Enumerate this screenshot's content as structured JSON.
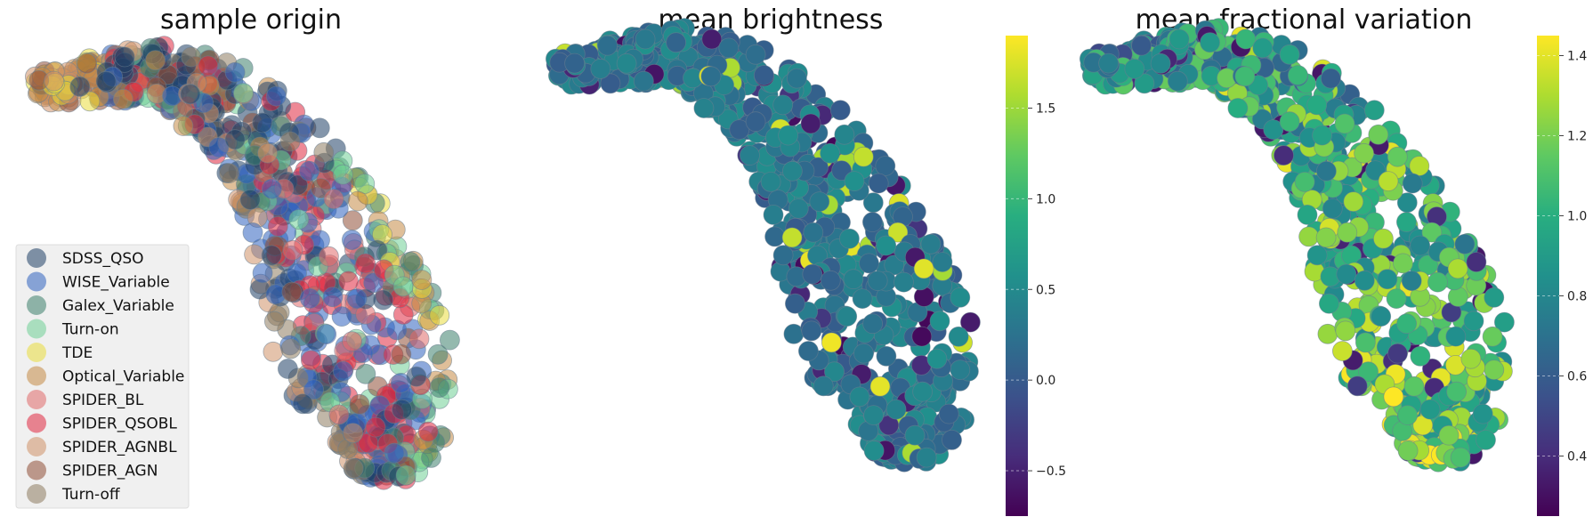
{
  "chart_data": [
    {
      "type": "scatter",
      "title": "sample origin",
      "xlabel": "",
      "ylabel": "",
      "grid": false,
      "legend": {
        "placement": "lower-left",
        "entries": [
          {
            "name": "SDSS_QSO",
            "color": "#1f3f66"
          },
          {
            "name": "WISE_Variable",
            "color": "#2f63bf"
          },
          {
            "name": "Galex_Variable",
            "color": "#3c7f6c"
          },
          {
            "name": "Turn-on",
            "color": "#6fcf95"
          },
          {
            "name": "TDE",
            "color": "#eadc3c"
          },
          {
            "name": "Optical_Variable",
            "color": "#c48a46"
          },
          {
            "name": "SPIDER_BL",
            "color": "#e06a6a"
          },
          {
            "name": "SPIDER_QSOBL",
            "color": "#e0283f"
          },
          {
            "name": "SPIDER_AGNBL",
            "color": "#cf9268"
          },
          {
            "name": "SPIDER_AGN",
            "color": "#8f4e37"
          },
          {
            "name": "Turn-off",
            "color": "#8e7b60"
          }
        ]
      }
    },
    {
      "type": "scatter",
      "title": "mean brightness",
      "colormap": "viridis",
      "colorbar": {
        "min": -0.75,
        "max": 1.9,
        "ticks": [
          -0.5,
          0.0,
          0.5,
          1.0,
          1.5
        ],
        "tick_labels": [
          "−0.5",
          "0.0",
          "0.5",
          "1.0",
          "1.5"
        ]
      },
      "value_distribution": {
        "typical_range": [
          0.0,
          0.6
        ],
        "outliers": [
          -0.7,
          1.85
        ]
      }
    },
    {
      "type": "scatter",
      "title": "mean fractional variation",
      "colormap": "viridis",
      "colorbar": {
        "min": 0.25,
        "max": 1.45,
        "ticks": [
          0.4,
          0.6,
          0.8,
          1.0,
          1.2,
          1.4
        ],
        "tick_labels": [
          "0.4",
          "0.6",
          "0.8",
          "1.0",
          "1.2",
          "1.4"
        ]
      },
      "value_distribution": {
        "typical_range": [
          0.7,
          1.3
        ],
        "outliers": [
          0.3,
          1.42
        ]
      }
    }
  ]
}
